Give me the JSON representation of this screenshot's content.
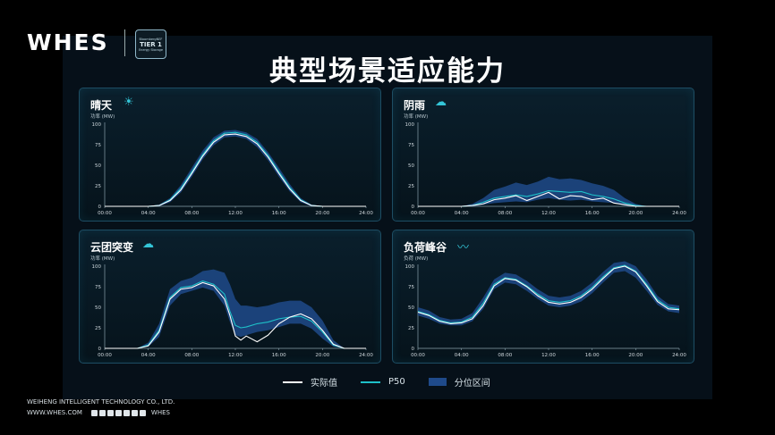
{
  "brand": {
    "logo": "WHES",
    "badge_line1": "BloombergNEF",
    "badge_line2": "TIER 1",
    "badge_line3": "Energy Storage"
  },
  "title": "典型场景适应能力",
  "legend": {
    "actual": "实际值",
    "p50": "P50",
    "band": "分位区间"
  },
  "colors": {
    "actual": "#ffffff",
    "p50": "#1ec0c8",
    "band": "#1f4a8a",
    "accent": "#34c6d8"
  },
  "footer": {
    "company": "WEIHENG INTELLIGENT TECHNOLOGY CO., LTD.",
    "website": "WWW.WHES.COM",
    "social_label": "WHES"
  },
  "chart_data": [
    {
      "type": "line",
      "title": "晴天",
      "icon": "sun-icon",
      "ylabel": "功率 (MW)",
      "ylim": [
        0,
        100
      ],
      "yticks": [
        "0",
        "25",
        "50",
        "75",
        "100"
      ],
      "xticks": [
        "00:00",
        "04:00",
        "08:00",
        "12:00",
        "16:00",
        "20:00",
        "24:00"
      ],
      "x": [
        0,
        2,
        4,
        5,
        6,
        7,
        8,
        9,
        10,
        11,
        12,
        13,
        14,
        15,
        16,
        17,
        18,
        19,
        20,
        22,
        24
      ],
      "series": [
        {
          "name": "实际值",
          "values": [
            0,
            0,
            0,
            1,
            7,
            20,
            40,
            61,
            78,
            87,
            88,
            85,
            76,
            60,
            40,
            21,
            7,
            1,
            0,
            0,
            0
          ]
        },
        {
          "name": "P50",
          "values": [
            0,
            0,
            0,
            1,
            8,
            22,
            42,
            63,
            80,
            89,
            90,
            87,
            78,
            62,
            42,
            23,
            8,
            1,
            0,
            0,
            0
          ]
        }
      ],
      "band": {
        "low": [
          0,
          0,
          0,
          0,
          5,
          17,
          36,
          57,
          74,
          84,
          85,
          82,
          72,
          56,
          36,
          18,
          5,
          0,
          0,
          0,
          0
        ],
        "high": [
          0,
          0,
          0,
          2,
          10,
          26,
          47,
          68,
          84,
          92,
          93,
          90,
          82,
          66,
          47,
          27,
          10,
          2,
          0,
          0,
          0
        ]
      }
    },
    {
      "type": "line",
      "title": "阴雨",
      "icon": "rain-cloud-icon",
      "ylabel": "功率 (MW)",
      "ylim": [
        0,
        100
      ],
      "yticks": [
        "0",
        "25",
        "50",
        "75",
        "100"
      ],
      "xticks": [
        "00:00",
        "04:00",
        "08:00",
        "12:00",
        "16:00",
        "20:00",
        "24:00"
      ],
      "x": [
        0,
        4,
        5,
        6,
        7,
        8,
        9,
        10,
        11,
        12,
        13,
        14,
        15,
        16,
        17,
        18,
        19,
        20,
        21,
        24
      ],
      "series": [
        {
          "name": "实际值",
          "values": [
            0,
            0,
            1,
            3,
            8,
            10,
            13,
            7,
            12,
            17,
            9,
            13,
            12,
            8,
            10,
            4,
            2,
            0,
            0,
            0
          ]
        },
        {
          "name": "P50",
          "values": [
            0,
            0,
            1,
            5,
            10,
            12,
            14,
            12,
            15,
            19,
            18,
            17,
            18,
            14,
            12,
            9,
            4,
            1,
            0,
            0
          ]
        }
      ],
      "band": {
        "low": [
          0,
          0,
          0,
          2,
          4,
          5,
          6,
          5,
          8,
          10,
          8,
          7,
          8,
          6,
          5,
          4,
          1,
          0,
          0,
          0
        ],
        "high": [
          0,
          0,
          3,
          10,
          20,
          24,
          29,
          26,
          30,
          36,
          33,
          34,
          32,
          28,
          25,
          20,
          10,
          3,
          0,
          0
        ]
      }
    },
    {
      "type": "line",
      "title": "云团突变",
      "icon": "cloud-lightning-icon",
      "ylabel": "功率 (MW)",
      "ylim": [
        0,
        100
      ],
      "yticks": [
        "0",
        "25",
        "50",
        "75",
        "100"
      ],
      "xticks": [
        "00:00",
        "04:00",
        "08:00",
        "12:00",
        "16:00",
        "20:00",
        "24:00"
      ],
      "x": [
        0,
        2,
        3,
        4,
        5,
        6,
        7,
        8,
        9,
        10,
        11,
        11.5,
        12,
        12.5,
        13,
        14,
        15,
        16,
        17,
        18,
        19,
        20,
        21,
        22,
        24
      ],
      "series": [
        {
          "name": "实际值",
          "values": [
            0,
            0,
            0,
            3,
            20,
            60,
            72,
            74,
            80,
            76,
            60,
            40,
            15,
            10,
            15,
            8,
            16,
            30,
            38,
            42,
            36,
            22,
            5,
            0,
            0
          ]
        },
        {
          "name": "P50",
          "values": [
            0,
            0,
            0,
            4,
            22,
            62,
            74,
            76,
            82,
            78,
            66,
            45,
            28,
            25,
            26,
            30,
            32,
            36,
            38,
            39,
            33,
            20,
            4,
            0,
            0
          ]
        }
      ],
      "band": {
        "low": [
          0,
          0,
          0,
          2,
          14,
          52,
          66,
          70,
          74,
          70,
          52,
          32,
          16,
          14,
          16,
          20,
          22,
          26,
          30,
          30,
          24,
          12,
          2,
          0,
          0
        ],
        "high": [
          0,
          0,
          0,
          7,
          30,
          72,
          82,
          86,
          94,
          96,
          92,
          78,
          60,
          52,
          52,
          50,
          52,
          56,
          58,
          58,
          50,
          34,
          10,
          0,
          0
        ]
      }
    },
    {
      "type": "line",
      "title": "负荷峰谷",
      "icon": "pulse-icon",
      "ylabel": "负荷 (MW)",
      "ylim": [
        0,
        100
      ],
      "yticks": [
        "0",
        "25",
        "50",
        "75",
        "100"
      ],
      "xticks": [
        "00:00",
        "04:00",
        "08:00",
        "12:00",
        "16:00",
        "20:00",
        "24:00"
      ],
      "x": [
        0,
        1,
        2,
        3,
        4,
        5,
        6,
        7,
        8,
        9,
        10,
        11,
        12,
        13,
        14,
        15,
        16,
        17,
        18,
        19,
        20,
        21,
        22,
        23,
        24
      ],
      "series": [
        {
          "name": "实际值",
          "values": [
            44,
            40,
            33,
            30,
            31,
            36,
            52,
            76,
            85,
            83,
            75,
            64,
            56,
            54,
            56,
            62,
            72,
            85,
            97,
            100,
            93,
            76,
            57,
            48,
            47
          ]
        },
        {
          "name": "P50",
          "values": [
            45,
            41,
            34,
            31,
            32,
            38,
            55,
            78,
            86,
            84,
            76,
            66,
            58,
            56,
            58,
            64,
            74,
            87,
            98,
            101,
            94,
            78,
            59,
            50,
            48
          ]
        }
      ],
      "band": {
        "low": [
          40,
          36,
          30,
          28,
          28,
          33,
          48,
          72,
          80,
          78,
          70,
          60,
          52,
          50,
          52,
          57,
          67,
          80,
          92,
          94,
          86,
          70,
          53,
          45,
          43
        ],
        "high": [
          50,
          46,
          38,
          35,
          36,
          43,
          62,
          84,
          92,
          90,
          82,
          72,
          64,
          62,
          64,
          70,
          80,
          93,
          104,
          106,
          100,
          84,
          64,
          54,
          52
        ]
      }
    }
  ]
}
